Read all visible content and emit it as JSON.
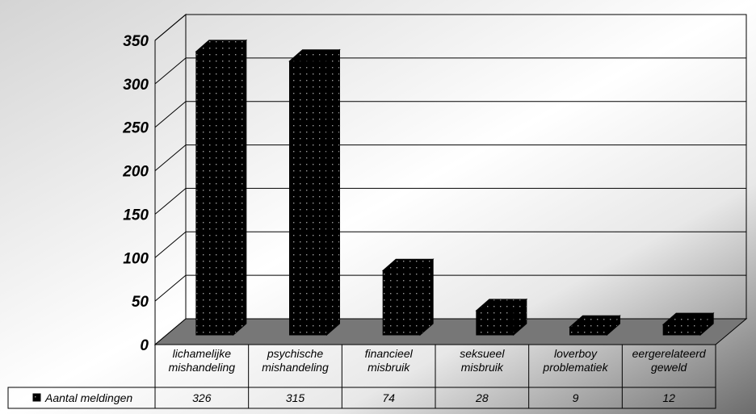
{
  "chart_data": {
    "type": "bar",
    "title": "",
    "xlabel": "",
    "ylabel": "",
    "categories": [
      [
        "lichamelijke",
        "mishandeling"
      ],
      [
        "psychische",
        "mishandeling"
      ],
      [
        "financieel",
        "misbruik"
      ],
      [
        "seksueel",
        "misbruik"
      ],
      [
        "loverboy",
        "problematiek"
      ],
      [
        "eergerelateerd",
        "geweld"
      ]
    ],
    "series": [
      {
        "name": "Aantal meldingen",
        "values": [
          326,
          315,
          74,
          28,
          9,
          12
        ]
      }
    ],
    "value_labels": [
      "326",
      "315",
      "74",
      "28",
      "9",
      "12"
    ],
    "yticks": [
      "0",
      "50",
      "100",
      "150",
      "200",
      "250",
      "300",
      "350"
    ],
    "ylim": [
      0,
      350
    ],
    "grid": true,
    "style": "3d-bar",
    "legend": "data-table-left",
    "colors": {
      "bar": "#000000",
      "floor": "#777777",
      "gridline": "#000000"
    }
  }
}
